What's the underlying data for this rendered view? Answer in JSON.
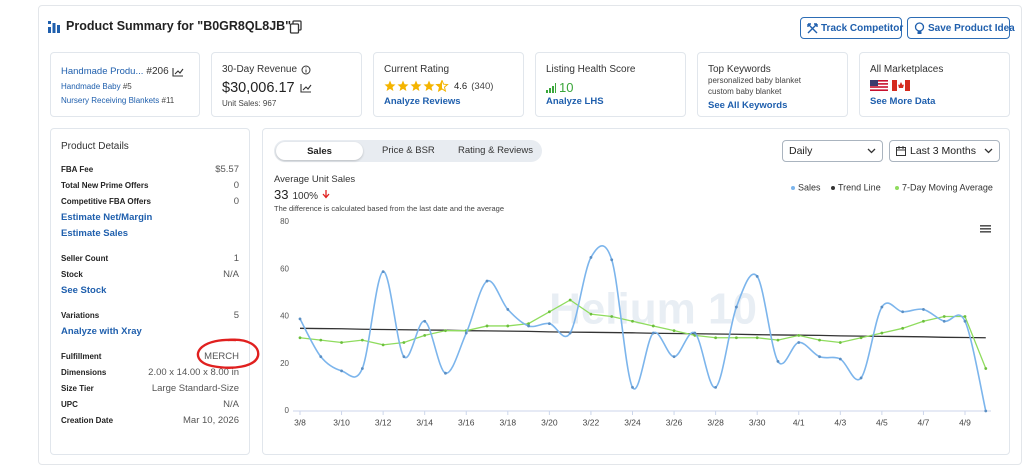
{
  "header": {
    "title": "Product Summary for \"B0GR8QL8JB\"",
    "buttons": [
      "Track Competitor",
      "Save Product Idea"
    ]
  },
  "cards": {
    "bsr": {
      "title": "Handmade Produ...",
      "rank": "#206",
      "subcategories": [
        {
          "name": "Handmade Baby",
          "rank": "#5"
        },
        {
          "name": "Nursery Receiving Blankets",
          "rank": "#11"
        }
      ]
    },
    "revenue": {
      "title": "30-Day Revenue",
      "value": "$30,006.17",
      "units_label": "Unit Sales:",
      "units": "967"
    },
    "rating": {
      "title": "Current Rating",
      "value": "4.6",
      "count": "(340)",
      "link": "Analyze Reviews"
    },
    "health": {
      "title": "Listing Health Score",
      "value": "10",
      "link": "Analyze LHS"
    },
    "keywords": {
      "title": "Top Keywords",
      "items": [
        "personalized baby blanket",
        "custom baby blanket"
      ],
      "link": "See All Keywords"
    },
    "marketplaces": {
      "title": "All Marketplaces",
      "link": "See More Data"
    }
  },
  "details": {
    "title": "Product Details",
    "groups": [
      [
        {
          "label": "FBA Fee",
          "value": "$5.57"
        },
        {
          "label": "Total New Prime Offers",
          "value": "0"
        },
        {
          "label": "Competitive FBA Offers",
          "value": "0"
        },
        {
          "link": "Estimate Net/Margin"
        },
        {
          "link": "Estimate Sales"
        }
      ],
      [
        {
          "label": "Seller Count",
          "value": "1"
        },
        {
          "label": "Stock",
          "value": "N/A"
        },
        {
          "link": "See Stock"
        }
      ],
      [
        {
          "label": "Variations",
          "value": "5"
        },
        {
          "link": "Analyze with Xray"
        }
      ],
      [
        {
          "label": "Fulfillment",
          "value": "MERCH"
        },
        {
          "label": "Dimensions",
          "value": "2.00 x 14.00 x 8.00 in"
        },
        {
          "label": "Size Tier",
          "value": "Large Standard-Size"
        },
        {
          "label": "UPC",
          "value": "N/A"
        },
        {
          "label": "Creation Date",
          "value": "Mar 10, 2026"
        }
      ]
    ]
  },
  "panel": {
    "tabs": [
      "Sales",
      "Price & BSR",
      "Rating & Reviews"
    ],
    "dropdowns": [
      "Daily",
      "Last 3 Months"
    ],
    "metric": {
      "title": "Average Unit Sales",
      "value": "33",
      "change": "100%",
      "note": "The difference is calculated based from the last date and the average"
    }
  },
  "chart_data": {
    "type": "line",
    "watermark": "Helium 10",
    "categories": [
      "3/8",
      null,
      "3/10",
      null,
      "3/12",
      null,
      "3/14",
      null,
      "3/16",
      null,
      "3/18",
      null,
      "3/20",
      null,
      "3/22",
      null,
      "3/24",
      null,
      "3/26",
      null,
      "3/28",
      null,
      "3/30",
      null,
      "4/1",
      null,
      "4/3",
      null,
      "4/5",
      null,
      "4/7",
      null,
      "4/9",
      null
    ],
    "series": [
      {
        "name": "Sales",
        "color": "#7cb5ec",
        "values": [
          39,
          23,
          17,
          18,
          59,
          23,
          38,
          16,
          33,
          55,
          43,
          36,
          37,
          33,
          65,
          64,
          10,
          33,
          23,
          33,
          10,
          44,
          57,
          21,
          29,
          23,
          22,
          14,
          44,
          42,
          43,
          38,
          38,
          0
        ]
      },
      {
        "name": "Trend Line",
        "color": "#333333",
        "values": [
          35.0,
          34.9,
          34.8,
          34.6,
          34.5,
          34.4,
          34.3,
          34.2,
          34.0,
          33.9,
          33.8,
          33.7,
          33.5,
          33.4,
          33.3,
          33.2,
          33.1,
          32.9,
          32.8,
          32.7,
          32.6,
          32.5,
          32.3,
          32.2,
          32.1,
          32.0,
          31.8,
          31.7,
          31.6,
          31.5,
          31.4,
          31.2,
          31.1,
          31.0
        ]
      },
      {
        "name": "7-Day Moving Average",
        "color": "#8fdc5e",
        "values": [
          31,
          30,
          29,
          30,
          28,
          29,
          32,
          34,
          34,
          36,
          36,
          37,
          42,
          47,
          41,
          40,
          38,
          36,
          34,
          32,
          31,
          31,
          31,
          30,
          32,
          30,
          29,
          31,
          33,
          35,
          38,
          40,
          40,
          18
        ]
      }
    ],
    "ylim": [
      0,
      80
    ],
    "yticks": [
      0,
      20,
      40,
      60,
      80
    ],
    "grid": false,
    "legend": "top-right"
  }
}
